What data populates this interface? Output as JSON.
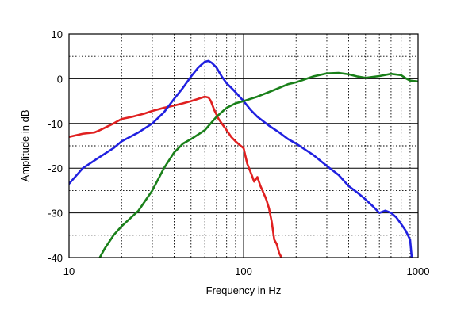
{
  "chart_data": {
    "type": "line",
    "xscale": "log",
    "xlim": [
      10,
      1000
    ],
    "ylim": [
      -40,
      10
    ],
    "xlabel": "Frequency in Hz",
    "ylabel": "Amplitude in dB",
    "x_ticks": [
      10,
      100,
      1000
    ],
    "x_tick_labels": [
      "10",
      "100",
      "1000"
    ],
    "y_ticks": [
      10,
      0,
      -10,
      -20,
      -30,
      -40
    ],
    "y_tick_labels": [
      "10",
      "0",
      "-10",
      "-20",
      "-30",
      "-40"
    ],
    "grid": true,
    "grid_major_style": "solid",
    "grid_minor_style": "dotted",
    "series": [
      {
        "color": "#e02020",
        "x": [
          10,
          12,
          14,
          15,
          18,
          20,
          23,
          27,
          30,
          35,
          40,
          45,
          50,
          55,
          60,
          63,
          65,
          68,
          72,
          75,
          80,
          85,
          90,
          95,
          100,
          105,
          110,
          115,
          120,
          125,
          130,
          135,
          140,
          145,
          150,
          155,
          160,
          165
        ],
        "y": [
          -13,
          -12.3,
          -12,
          -11.5,
          -10,
          -9,
          -8.5,
          -7.8,
          -7.2,
          -6.5,
          -6,
          -5.5,
          -5,
          -4.5,
          -4,
          -4.2,
          -5,
          -7,
          -9,
          -10,
          -11.5,
          -13,
          -14,
          -14.8,
          -15.5,
          -19,
          -21,
          -23,
          -22,
          -24,
          -25.5,
          -27,
          -29,
          -32,
          -36,
          -37,
          -39,
          -40
        ]
      },
      {
        "color": "#2020e0",
        "x": [
          10,
          12,
          15,
          18,
          20,
          25,
          30,
          35,
          40,
          45,
          50,
          55,
          60,
          63,
          66,
          70,
          75,
          80,
          85,
          90,
          100,
          110,
          120,
          140,
          160,
          180,
          200,
          250,
          300,
          350,
          400,
          450,
          500,
          550,
          600,
          650,
          700,
          750,
          800,
          850,
          900,
          920
        ],
        "y": [
          -23.5,
          -20,
          -17.5,
          -15.5,
          -14,
          -12,
          -10,
          -7.5,
          -4.5,
          -2,
          0.5,
          2.5,
          3.8,
          4,
          3.5,
          2.5,
          0.5,
          -1,
          -2,
          -3,
          -5,
          -7,
          -8.5,
          -10.5,
          -12,
          -13.5,
          -14.5,
          -17,
          -19.5,
          -21.5,
          -24,
          -25.5,
          -27,
          -28.5,
          -30,
          -29.5,
          -30,
          -31,
          -32.5,
          -34,
          -36,
          -40
        ]
      },
      {
        "color": "#1a801a",
        "x": [
          15,
          16,
          18,
          20,
          25,
          30,
          35,
          40,
          45,
          50,
          60,
          70,
          80,
          90,
          100,
          120,
          150,
          180,
          200,
          250,
          300,
          350,
          400,
          450,
          500,
          600,
          700,
          800,
          850,
          900,
          1000
        ],
        "y": [
          -40,
          -38,
          -35,
          -33,
          -29.5,
          -25,
          -20,
          -16.5,
          -14.5,
          -13.5,
          -11.5,
          -8.5,
          -6.5,
          -5.5,
          -5,
          -4,
          -2.5,
          -1.2,
          -0.8,
          0.5,
          1.2,
          1.3,
          1.0,
          0.5,
          0.2,
          0.6,
          1.1,
          0.8,
          0.1,
          -0.4,
          -0.6
        ]
      }
    ]
  }
}
